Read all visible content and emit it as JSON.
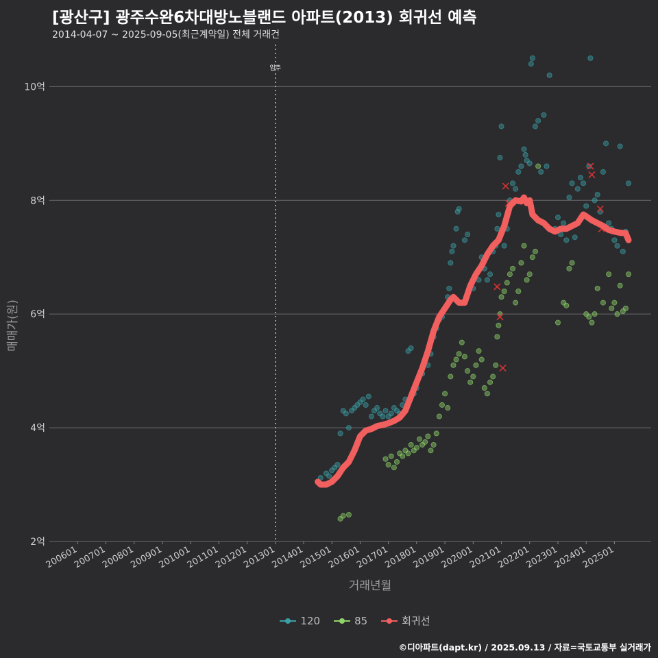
{
  "chart_data": {
    "type": "scatter",
    "title": "[광산구] 광주수완6차대방노블랜드 아파트(2013) 회귀선 예측",
    "subtitle": "2014-04-07 ~ 2025-09-05(최근계약일) 전체 거래건",
    "xlabel": "거래년월",
    "ylabel": "매매가(원)",
    "x_ticks": [
      "200601",
      "200701",
      "200801",
      "200901",
      "201001",
      "201101",
      "201201",
      "201301",
      "201401",
      "201501",
      "201601",
      "201701",
      "201801",
      "201901",
      "202001",
      "202101",
      "202201",
      "202301",
      "202401",
      "202501"
    ],
    "y_ticks": [
      "2억",
      "4억",
      "6억",
      "8억",
      "10억"
    ],
    "y_tick_values": [
      2,
      4,
      6,
      8,
      10
    ],
    "ylim": [
      2,
      10.8
    ],
    "xlim": [
      2005.0,
      2026.3
    ],
    "annotation": {
      "label": "입주",
      "x": 2013.0
    },
    "grid": true,
    "legend_position": "bottom",
    "legend": [
      "120",
      "85",
      "회귀선"
    ],
    "colors": {
      "120": "#3aa0a5",
      "85": "#8fd468",
      "회귀선": "#f25f5f",
      "cancel": "#d63333"
    },
    "series": [
      {
        "name": "120",
        "points": [
          [
            2014.6,
            3.12
          ],
          [
            2014.8,
            3.2
          ],
          [
            2014.9,
            3.15
          ],
          [
            2015.0,
            3.25
          ],
          [
            2015.1,
            3.3
          ],
          [
            2015.2,
            3.35
          ],
          [
            2015.3,
            3.9
          ],
          [
            2015.4,
            4.3
          ],
          [
            2015.5,
            4.25
          ],
          [
            2015.6,
            4.0
          ],
          [
            2015.7,
            4.3
          ],
          [
            2015.8,
            4.35
          ],
          [
            2015.9,
            4.4
          ],
          [
            2016.0,
            4.45
          ],
          [
            2016.1,
            4.5
          ],
          [
            2016.2,
            4.4
          ],
          [
            2016.3,
            4.55
          ],
          [
            2016.4,
            4.2
          ],
          [
            2016.5,
            4.3
          ],
          [
            2016.6,
            4.35
          ],
          [
            2016.7,
            4.25
          ],
          [
            2016.8,
            4.2
          ],
          [
            2016.9,
            4.3
          ],
          [
            2017.0,
            4.2
          ],
          [
            2017.1,
            4.25
          ],
          [
            2017.2,
            4.35
          ],
          [
            2017.3,
            4.3
          ],
          [
            2017.4,
            4.25
          ],
          [
            2017.5,
            4.4
          ],
          [
            2017.6,
            4.5
          ],
          [
            2017.7,
            5.35
          ],
          [
            2017.8,
            5.4
          ],
          [
            2017.9,
            4.6
          ],
          [
            2018.0,
            4.7
          ],
          [
            2018.2,
            4.95
          ],
          [
            2018.4,
            5.1
          ],
          [
            2018.5,
            5.3
          ],
          [
            2018.6,
            5.6
          ],
          [
            2018.7,
            5.75
          ],
          [
            2018.8,
            5.9
          ],
          [
            2018.9,
            5.95
          ],
          [
            2019.0,
            6.1
          ],
          [
            2019.1,
            6.3
          ],
          [
            2019.15,
            6.45
          ],
          [
            2019.2,
            6.9
          ],
          [
            2019.25,
            7.1
          ],
          [
            2019.3,
            7.2
          ],
          [
            2019.4,
            7.5
          ],
          [
            2019.45,
            7.8
          ],
          [
            2019.5,
            7.85
          ],
          [
            2019.7,
            7.3
          ],
          [
            2019.8,
            7.4
          ],
          [
            2019.9,
            6.5
          ],
          [
            2020.0,
            6.45
          ],
          [
            2020.2,
            6.6
          ],
          [
            2020.3,
            7.0
          ],
          [
            2020.4,
            6.8
          ],
          [
            2020.5,
            6.6
          ],
          [
            2020.6,
            6.7
          ],
          [
            2020.7,
            7.1
          ],
          [
            2020.8,
            7.2
          ],
          [
            2020.85,
            7.5
          ],
          [
            2020.9,
            7.75
          ],
          [
            2020.95,
            8.75
          ],
          [
            2021.0,
            9.3
          ],
          [
            2021.1,
            7.2
          ],
          [
            2021.2,
            7.5
          ],
          [
            2021.3,
            8.0
          ],
          [
            2021.4,
            8.3
          ],
          [
            2021.5,
            8.2
          ],
          [
            2021.6,
            8.5
          ],
          [
            2021.7,
            8.6
          ],
          [
            2021.8,
            8.9
          ],
          [
            2021.85,
            8.8
          ],
          [
            2021.9,
            8.7
          ],
          [
            2022.0,
            8.65
          ],
          [
            2022.05,
            10.4
          ],
          [
            2022.1,
            10.5
          ],
          [
            2022.2,
            9.3
          ],
          [
            2022.3,
            9.4
          ],
          [
            2022.4,
            8.5
          ],
          [
            2022.5,
            9.5
          ],
          [
            2022.6,
            8.6
          ],
          [
            2022.7,
            10.2
          ],
          [
            2022.9,
            7.5
          ],
          [
            2023.0,
            7.7
          ],
          [
            2023.1,
            7.4
          ],
          [
            2023.2,
            7.6
          ],
          [
            2023.3,
            7.3
          ],
          [
            2023.4,
            8.05
          ],
          [
            2023.5,
            8.3
          ],
          [
            2023.6,
            7.35
          ],
          [
            2023.7,
            8.2
          ],
          [
            2023.8,
            8.4
          ],
          [
            2023.9,
            8.3
          ],
          [
            2024.0,
            7.9
          ],
          [
            2024.1,
            8.6
          ],
          [
            2024.15,
            10.5
          ],
          [
            2024.3,
            8.0
          ],
          [
            2024.4,
            8.1
          ],
          [
            2024.5,
            7.8
          ],
          [
            2024.6,
            8.5
          ],
          [
            2024.7,
            9.0
          ],
          [
            2024.8,
            7.6
          ],
          [
            2024.9,
            7.5
          ],
          [
            2025.0,
            7.3
          ],
          [
            2025.1,
            7.2
          ],
          [
            2025.2,
            8.95
          ],
          [
            2025.3,
            7.1
          ],
          [
            2025.4,
            7.45
          ],
          [
            2025.5,
            8.3
          ]
        ]
      },
      {
        "name": "85",
        "points": [
          [
            2015.3,
            2.4
          ],
          [
            2015.4,
            2.45
          ],
          [
            2015.6,
            2.47
          ],
          [
            2016.9,
            3.45
          ],
          [
            2017.0,
            3.35
          ],
          [
            2017.1,
            3.5
          ],
          [
            2017.2,
            3.3
          ],
          [
            2017.3,
            3.4
          ],
          [
            2017.4,
            3.55
          ],
          [
            2017.5,
            3.5
          ],
          [
            2017.6,
            3.6
          ],
          [
            2017.7,
            3.55
          ],
          [
            2017.8,
            3.7
          ],
          [
            2017.9,
            3.6
          ],
          [
            2018.0,
            3.65
          ],
          [
            2018.1,
            3.8
          ],
          [
            2018.2,
            3.7
          ],
          [
            2018.3,
            3.75
          ],
          [
            2018.4,
            3.85
          ],
          [
            2018.5,
            3.6
          ],
          [
            2018.6,
            3.7
          ],
          [
            2018.7,
            3.9
          ],
          [
            2018.8,
            4.2
          ],
          [
            2018.9,
            4.4
          ],
          [
            2019.0,
            4.6
          ],
          [
            2019.1,
            4.35
          ],
          [
            2019.2,
            4.9
          ],
          [
            2019.3,
            5.1
          ],
          [
            2019.4,
            5.2
          ],
          [
            2019.5,
            5.3
          ],
          [
            2019.6,
            5.5
          ],
          [
            2019.7,
            5.25
          ],
          [
            2019.8,
            5.0
          ],
          [
            2019.9,
            4.8
          ],
          [
            2020.0,
            4.9
          ],
          [
            2020.1,
            5.1
          ],
          [
            2020.2,
            5.35
          ],
          [
            2020.3,
            5.2
          ],
          [
            2020.4,
            4.7
          ],
          [
            2020.5,
            4.6
          ],
          [
            2020.6,
            4.8
          ],
          [
            2020.7,
            4.9
          ],
          [
            2020.8,
            5.1
          ],
          [
            2020.85,
            5.6
          ],
          [
            2020.9,
            5.8
          ],
          [
            2020.95,
            6.0
          ],
          [
            2021.0,
            6.3
          ],
          [
            2021.1,
            6.4
          ],
          [
            2021.2,
            6.55
          ],
          [
            2021.3,
            6.7
          ],
          [
            2021.4,
            6.8
          ],
          [
            2021.5,
            6.2
          ],
          [
            2021.6,
            6.4
          ],
          [
            2021.7,
            6.9
          ],
          [
            2021.8,
            7.2
          ],
          [
            2021.9,
            6.6
          ],
          [
            2022.0,
            6.7
          ],
          [
            2022.1,
            7.0
          ],
          [
            2022.2,
            7.1
          ],
          [
            2022.3,
            8.6
          ],
          [
            2023.0,
            5.85
          ],
          [
            2023.2,
            6.2
          ],
          [
            2023.3,
            6.15
          ],
          [
            2023.4,
            6.8
          ],
          [
            2023.5,
            6.9
          ],
          [
            2024.0,
            6.0
          ],
          [
            2024.1,
            5.95
          ],
          [
            2024.2,
            5.85
          ],
          [
            2024.3,
            6.0
          ],
          [
            2024.4,
            6.45
          ],
          [
            2024.6,
            6.2
          ],
          [
            2024.8,
            6.7
          ],
          [
            2024.9,
            6.1
          ],
          [
            2025.0,
            6.2
          ],
          [
            2025.1,
            6.0
          ],
          [
            2025.2,
            6.5
          ],
          [
            2025.3,
            6.05
          ],
          [
            2025.4,
            6.1
          ],
          [
            2025.5,
            6.7
          ]
        ]
      },
      {
        "name": "회귀선",
        "points": [
          [
            2014.5,
            3.05
          ],
          [
            2014.6,
            3.0
          ],
          [
            2014.8,
            3.0
          ],
          [
            2015.0,
            3.05
          ],
          [
            2015.2,
            3.15
          ],
          [
            2015.4,
            3.3
          ],
          [
            2015.6,
            3.4
          ],
          [
            2015.8,
            3.6
          ],
          [
            2016.0,
            3.85
          ],
          [
            2016.2,
            3.95
          ],
          [
            2016.4,
            3.98
          ],
          [
            2016.6,
            4.03
          ],
          [
            2016.8,
            4.05
          ],
          [
            2017.0,
            4.08
          ],
          [
            2017.2,
            4.12
          ],
          [
            2017.4,
            4.18
          ],
          [
            2017.6,
            4.3
          ],
          [
            2017.8,
            4.55
          ],
          [
            2018.0,
            4.8
          ],
          [
            2018.2,
            5.05
          ],
          [
            2018.4,
            5.35
          ],
          [
            2018.6,
            5.7
          ],
          [
            2018.8,
            5.95
          ],
          [
            2019.0,
            6.1
          ],
          [
            2019.2,
            6.25
          ],
          [
            2019.3,
            6.3
          ],
          [
            2019.5,
            6.2
          ],
          [
            2019.7,
            6.2
          ],
          [
            2019.9,
            6.5
          ],
          [
            2020.1,
            6.7
          ],
          [
            2020.3,
            6.85
          ],
          [
            2020.5,
            7.05
          ],
          [
            2020.7,
            7.2
          ],
          [
            2020.9,
            7.3
          ],
          [
            2021.1,
            7.55
          ],
          [
            2021.3,
            7.9
          ],
          [
            2021.5,
            8.0
          ],
          [
            2021.7,
            7.98
          ],
          [
            2021.8,
            8.05
          ],
          [
            2021.9,
            7.95
          ],
          [
            2022.0,
            8.0
          ],
          [
            2022.1,
            7.75
          ],
          [
            2022.3,
            7.65
          ],
          [
            2022.5,
            7.6
          ],
          [
            2022.7,
            7.5
          ],
          [
            2022.9,
            7.45
          ],
          [
            2023.1,
            7.5
          ],
          [
            2023.3,
            7.5
          ],
          [
            2023.5,
            7.55
          ],
          [
            2023.7,
            7.6
          ],
          [
            2023.9,
            7.75
          ],
          [
            2024.0,
            7.72
          ],
          [
            2024.2,
            7.65
          ],
          [
            2024.4,
            7.6
          ],
          [
            2024.6,
            7.55
          ],
          [
            2024.8,
            7.48
          ],
          [
            2025.0,
            7.45
          ],
          [
            2025.2,
            7.43
          ],
          [
            2025.4,
            7.42
          ],
          [
            2025.5,
            7.3
          ]
        ]
      }
    ],
    "cancelled": [
      [
        2020.85,
        6.48
      ],
      [
        2020.95,
        5.95
      ],
      [
        2021.05,
        5.05
      ],
      [
        2021.15,
        8.25
      ],
      [
        2021.25,
        7.95
      ],
      [
        2024.15,
        8.6
      ],
      [
        2024.2,
        8.45
      ],
      [
        2024.5,
        7.85
      ],
      [
        2024.55,
        7.5
      ]
    ]
  },
  "footer": "©디아파트(dapt.kr) / 2025.09.13 / 자료=국토교통부 실거래가"
}
